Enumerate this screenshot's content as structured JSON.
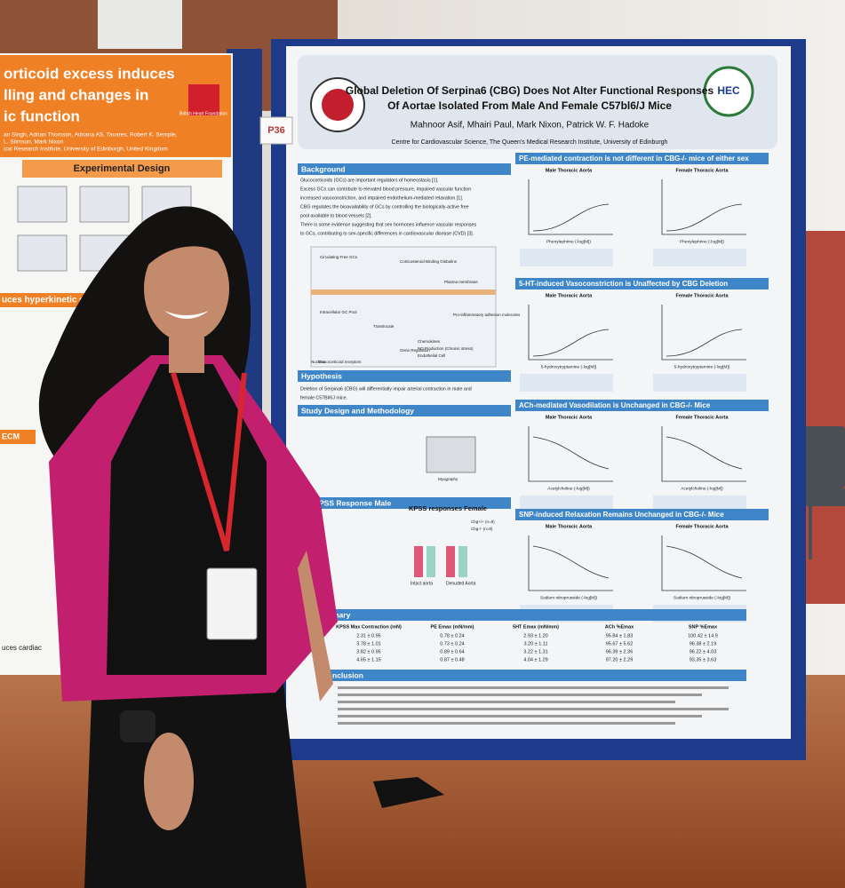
{
  "board_label": "P36",
  "poster": {
    "title_lines": [
      "Global Deletion Of Serpina6 (CBG) Does Not Alter Functional Responses",
      "Of Aortae Isolated From Male And Female C57bl6/J Mice"
    ],
    "authors": "Mahnoor Asif, Mhairi Paul, Mark Nixon, Patrick W. F. Hadoke",
    "affiliation": "Centre for Cardiovascular Science, The Queen's Medical Research Institute, University of Edinburgh",
    "logo_right": "HEC",
    "background": {
      "heading": "Background",
      "lines": [
        "Glucocorticoids (GCs) are important regulators of homeostasis [1].",
        "Excess GCs can contribute to elevated blood pressure, impaired vascular function",
        "increased vasoconstriction, and impaired endothelium-mediated relaxation [1].",
        "CBG regulates the bioavailability of GCs by controlling the biologically-active free",
        "pool available to blood vessels [2].",
        "There is some evidence suggesting that sex hormones influence vascular responses",
        "to GCs, contributing to sex-specific differences in cardiovascular disease (CVD) [3]."
      ],
      "diagram_labels": [
        "Circulating Free GCs",
        "Corticosteroid Binding Globulins",
        "Plasma membrane",
        "Intracellular GC Pool",
        "Glucocorticoid receptors",
        "Translocate",
        "Gene Regulation",
        "Pro-inflammatory adhesion molecules",
        "Chemokines",
        "NO Production (Chronic stress)",
        "Endothelial Cell",
        "Nucleus"
      ]
    },
    "hypothesis": {
      "heading": "Hypothesis",
      "lines": [
        "Deletion of Serpina6 (CBG) will differentially impair arterial contraction in male and",
        "female C57Bl/6J mice."
      ]
    },
    "methods": {
      "heading": "Study Design and Methodology",
      "label": "Myography"
    },
    "kpss": {
      "male": "PSS Response Male",
      "female": "KPSS responses Female",
      "x_labels": [
        "Intact aorta",
        "Denuded Aorta"
      ],
      "legend": [
        "Cbg+/+ (n=8)",
        "Cbg-/- (n=8)"
      ]
    },
    "panels": [
      {
        "heading": "PE-mediated contraction is not different in CBG-/- mice of either sex",
        "male": "Male Thoracic Aorta",
        "female": "Female Thoracic Aorta",
        "x_label": "Phenylephrine (-log[M])"
      },
      {
        "heading": "5-HT-induced Vasoconstriction is Unaffected by CBG Deletion",
        "male": "Male Thoracic Aorta",
        "female": "Female Thoracic Aorta",
        "x_label": "5-hydroxytryptamine (-log[M])"
      },
      {
        "heading": "ACh-mediated Vasodilation is Unchanged in CBG-/- Mice",
        "male": "Male Thoracic Aorta",
        "female": "Female Thoracic Aorta",
        "x_label": "Acetylcholine (-log[M])"
      },
      {
        "heading": "SNP-induced Relaxation Remains Unchanged in CBG-/- Mice",
        "male": "Male Thoracic Aorta",
        "female": "Female Thoracic Aorta",
        "x_label": "Sodium nitroprusside (-log[M])"
      }
    ],
    "summary": {
      "heading": "mary",
      "columns": [
        "KPSS Max Contraction (mN)",
        "PE Emax (mN/mm)",
        "5HT Emax (mN/mm)",
        "ACh %Emax",
        "SNP %Emax"
      ],
      "rows": [
        [
          "2.31 ± 0.95",
          "0.78 ± 0.24",
          "2.93 ± 1.20",
          "95.84 ± 1.83",
          "100.42 ± 14.9"
        ],
        [
          "3.78 ± 1.01",
          "0.73 ± 0.24",
          "3.20 ± 1.11",
          "95.67 ± 5.62",
          "96.38 ± 2.19"
        ],
        [
          "3.82 ± 0.95",
          "0.89 ± 0.64",
          "3.22 ± 1.31",
          "96.39 ± 2.36",
          "96.22 ± 4.03"
        ],
        [
          "4.65 ± 1.15",
          "0.87 ± 0.48",
          "4.04 ± 1.29",
          "97.20 ± 2.29",
          "93.35 ± 3.63"
        ]
      ]
    },
    "conclusion": {
      "heading": "nclusion"
    }
  },
  "left_poster": {
    "title_lines": [
      "orticoid excess induces",
      "lling and changes in",
      "ic function"
    ],
    "authors_lines": [
      "an Singh, Adrian Thomson, Adriana AS. Tavares, Robert K. Semple,",
      "L. Stimson, Mark Nixon",
      "ical Research Institute, University of Edinburgh, United Kingdom"
    ],
    "logo": "British Heart Foundation",
    "design_heading": "Experimental Design",
    "section_heading": "uces hyperkinetic cardiac w",
    "ecm": "ECM",
    "bottom": "uces cardiac"
  }
}
